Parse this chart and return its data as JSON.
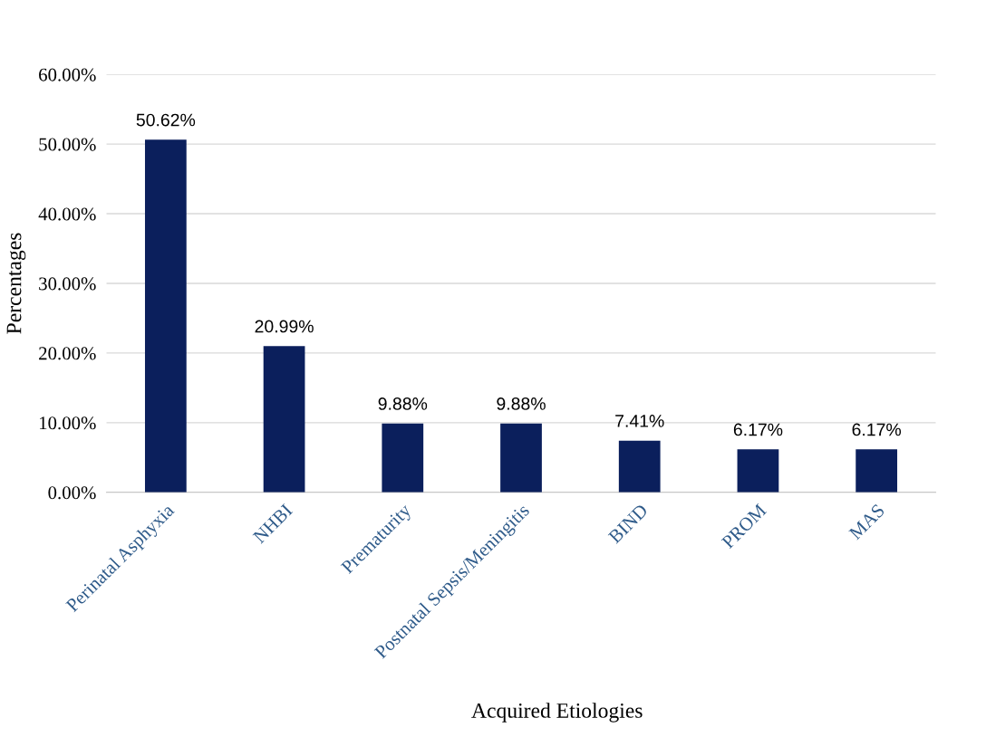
{
  "chart_data": {
    "type": "bar",
    "xlabel": "Acquired Etiologies",
    "ylabel": "Percentages",
    "categories": [
      "Perinatal Asphyxia",
      "NHBI",
      "Prematurity",
      "Postnatal Sepsis/Meningitis",
      "BIND",
      "PROM",
      "MAS"
    ],
    "values": [
      50.62,
      20.99,
      9.88,
      9.88,
      7.41,
      6.17,
      6.17
    ],
    "value_labels": [
      "50.62%",
      "20.99%",
      "9.88%",
      "9.88%",
      "7.41%",
      "6.17%",
      "6.17%"
    ],
    "color": "#0b1f5c",
    "ylim": [
      0,
      60
    ],
    "yticks": [
      {
        "value": 0,
        "label": "0.00%"
      },
      {
        "value": 10,
        "label": "10.00%"
      },
      {
        "value": 20,
        "label": "20.00%"
      },
      {
        "value": 30,
        "label": "30.00%"
      },
      {
        "value": 40,
        "label": "40.00%"
      },
      {
        "value": 50,
        "label": "50.00%"
      },
      {
        "value": 60,
        "label": "60.00%"
      }
    ],
    "grid": "y"
  }
}
